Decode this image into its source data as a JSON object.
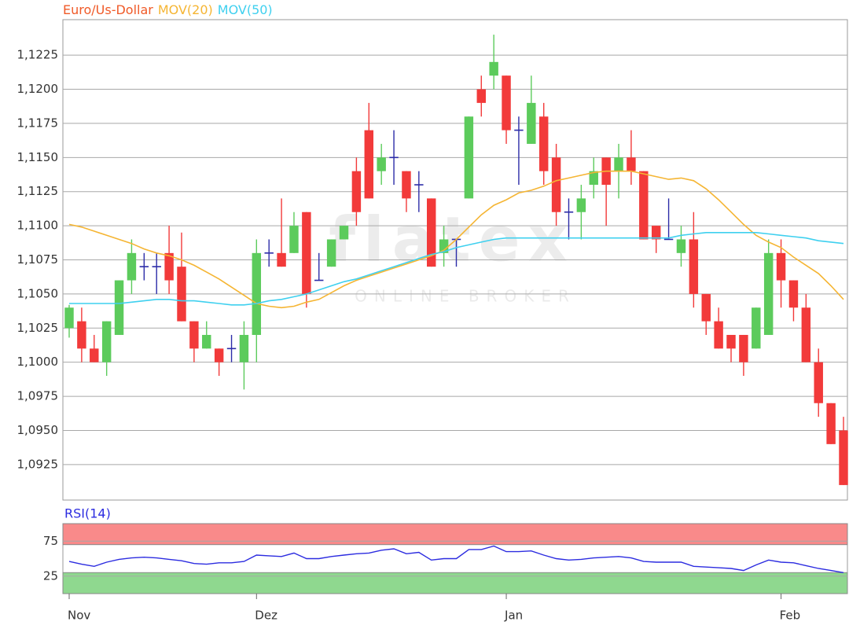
{
  "chart_data": [
    {
      "type": "candlestick",
      "categories": [
        "Nov",
        null,
        null,
        null,
        null,
        null,
        null,
        null,
        null,
        null,
        null,
        null,
        null,
        null,
        null,
        "Dez",
        null,
        null,
        null,
        null,
        null,
        null,
        null,
        null,
        null,
        null,
        null,
        null,
        null,
        null,
        null,
        null,
        null,
        null,
        null,
        "Jan",
        null,
        null,
        null,
        null,
        null,
        null,
        null,
        null,
        null,
        null,
        null,
        null,
        null,
        null,
        null,
        null,
        null,
        null,
        null,
        null,
        null,
        "Feb",
        null,
        null,
        null,
        null,
        null
      ],
      "series": [
        {
          "name": "Euro/Us-Dollar",
          "color": "#f05a28",
          "up_color": "#5ccb5c",
          "down_color": "#f23a3a",
          "doji_color": "#2c2ca8",
          "open": [
            1.1025,
            1.103,
            1.101,
            1.1,
            1.102,
            1.106,
            1.107,
            1.107,
            1.108,
            1.107,
            1.103,
            1.101,
            1.101,
            1.101,
            1.1,
            1.102,
            1.108,
            1.108,
            1.108,
            1.111,
            1.106,
            1.107,
            1.109,
            1.114,
            1.117,
            1.114,
            1.115,
            1.114,
            1.113,
            1.112,
            1.108,
            1.109,
            1.112,
            1.12,
            1.121,
            1.121,
            1.117,
            1.116,
            1.118,
            1.115,
            1.111,
            1.111,
            1.113,
            1.115,
            1.114,
            1.115,
            1.114,
            1.11,
            1.109,
            1.108,
            1.109,
            1.105,
            1.103,
            1.102,
            1.102,
            1.101,
            1.102,
            1.108,
            1.106,
            1.104,
            1.1,
            1.097,
            1.095
          ],
          "high": [
            1.1042,
            1.104,
            1.102,
            1.103,
            1.106,
            1.109,
            1.108,
            1.108,
            1.11,
            1.1095,
            1.103,
            1.103,
            1.101,
            1.102,
            1.103,
            1.109,
            1.109,
            1.112,
            1.111,
            1.111,
            1.108,
            1.109,
            1.11,
            1.115,
            1.119,
            1.116,
            1.117,
            1.114,
            1.114,
            1.112,
            1.11,
            1.109,
            1.118,
            1.121,
            1.124,
            1.121,
            1.118,
            1.121,
            1.119,
            1.116,
            1.112,
            1.113,
            1.115,
            1.115,
            1.116,
            1.117,
            1.114,
            1.11,
            1.112,
            1.11,
            1.111,
            1.105,
            1.104,
            1.102,
            1.102,
            1.104,
            1.109,
            1.109,
            1.106,
            1.105,
            1.101,
            1.097,
            1.096
          ],
          "low": [
            1.1018,
            1.1,
            1.1,
            1.099,
            1.102,
            1.105,
            1.106,
            1.105,
            1.105,
            1.103,
            1.1,
            1.101,
            1.099,
            1.1,
            1.098,
            1.1,
            1.107,
            1.107,
            1.108,
            1.104,
            1.106,
            1.107,
            1.109,
            1.11,
            1.112,
            1.113,
            1.113,
            1.111,
            1.111,
            1.107,
            1.107,
            1.107,
            1.112,
            1.118,
            1.12,
            1.116,
            1.113,
            1.116,
            1.113,
            1.11,
            1.109,
            1.109,
            1.112,
            1.11,
            1.112,
            1.113,
            1.109,
            1.108,
            1.109,
            1.107,
            1.104,
            1.102,
            1.101,
            1.1,
            1.099,
            1.101,
            1.102,
            1.104,
            1.103,
            1.1,
            1.096,
            1.094,
            1.091
          ],
          "close": [
            1.104,
            1.101,
            1.1,
            1.103,
            1.106,
            1.108,
            1.107,
            1.107,
            1.106,
            1.103,
            1.101,
            1.102,
            1.1,
            1.101,
            1.102,
            1.108,
            1.108,
            1.107,
            1.11,
            1.105,
            1.106,
            1.109,
            1.11,
            1.111,
            1.112,
            1.115,
            1.115,
            1.112,
            1.113,
            1.107,
            1.109,
            1.109,
            1.118,
            1.119,
            1.122,
            1.117,
            1.117,
            1.119,
            1.114,
            1.111,
            1.111,
            1.112,
            1.114,
            1.113,
            1.115,
            1.114,
            1.109,
            1.109,
            1.109,
            1.109,
            1.105,
            1.103,
            1.101,
            1.101,
            1.1,
            1.104,
            1.108,
            1.106,
            1.104,
            1.1,
            1.097,
            1.094,
            1.091
          ]
        },
        {
          "name": "MOV(20)",
          "color": "#f5b533",
          "values": [
            1.1101,
            1.1099,
            1.1096,
            1.1093,
            1.109,
            1.1087,
            1.1083,
            1.108,
            1.1078,
            1.1075,
            1.1071,
            1.1066,
            1.1061,
            1.1055,
            1.1049,
            1.1043,
            1.1041,
            1.104,
            1.1041,
            1.1044,
            1.1046,
            1.1051,
            1.1056,
            1.106,
            1.1063,
            1.1066,
            1.1069,
            1.1072,
            1.1075,
            1.1078,
            1.1082,
            1.109,
            1.1099,
            1.1108,
            1.1115,
            1.1119,
            1.1124,
            1.1126,
            1.1129,
            1.1133,
            1.1135,
            1.1137,
            1.1139,
            1.114,
            1.114,
            1.114,
            1.1138,
            1.1136,
            1.1134,
            1.1135,
            1.1133,
            1.1127,
            1.1119,
            1.111,
            1.1101,
            1.1093,
            1.1088,
            1.1084,
            1.1077,
            1.1071,
            1.1065,
            1.1056,
            1.1046
          ]
        },
        {
          "name": "MOV(50)",
          "color": "#3fd0ef",
          "values": [
            1.1043,
            1.1043,
            1.1043,
            1.1043,
            1.1043,
            1.1044,
            1.1045,
            1.1046,
            1.1046,
            1.1045,
            1.1045,
            1.1044,
            1.1043,
            1.1042,
            1.1042,
            1.1043,
            1.1045,
            1.1046,
            1.1048,
            1.105,
            1.1053,
            1.1056,
            1.1059,
            1.1061,
            1.1064,
            1.1067,
            1.107,
            1.1073,
            1.1076,
            1.1079,
            1.1081,
            1.1084,
            1.1086,
            1.1088,
            1.109,
            1.1091,
            1.1091,
            1.1091,
            1.1091,
            1.1091,
            1.1091,
            1.1091,
            1.1091,
            1.1091,
            1.1091,
            1.1091,
            1.1091,
            1.1091,
            1.1091,
            1.1093,
            1.1094,
            1.1095,
            1.1095,
            1.1095,
            1.1095,
            1.1095,
            1.1094,
            1.1093,
            1.1092,
            1.1091,
            1.1089,
            1.1088,
            1.1087
          ]
        }
      ],
      "ylim": [
        1.0899,
        1.1251
      ],
      "yticks": [
        {
          "value": 1.0925,
          "label": "1,0925"
        },
        {
          "value": 1.095,
          "label": "1,0950"
        },
        {
          "value": 1.0975,
          "label": "1,0975"
        },
        {
          "value": 1.1,
          "label": "1,1000"
        },
        {
          "value": 1.1025,
          "label": "1,1025"
        },
        {
          "value": 1.105,
          "label": "1,1050"
        },
        {
          "value": 1.1075,
          "label": "1,1075"
        },
        {
          "value": 1.11,
          "label": "1,1100"
        },
        {
          "value": 1.1125,
          "label": "1,1125"
        },
        {
          "value": 1.115,
          "label": "1,1150"
        },
        {
          "value": 1.1175,
          "label": "1,1175"
        },
        {
          "value": 1.12,
          "label": "1,1200"
        },
        {
          "value": 1.1225,
          "label": "1,1225"
        }
      ],
      "grid": true,
      "watermark": {
        "logo": "flatex",
        "tagline": "ONLINE BROKER"
      }
    },
    {
      "type": "line",
      "title": "RSI(14)",
      "color": "#2c2ce0",
      "values": [
        46,
        42,
        39,
        45,
        49,
        51,
        52,
        51,
        49,
        47,
        43,
        42,
        44,
        44,
        46,
        55,
        54,
        53,
        58,
        50,
        50,
        53,
        55,
        57,
        58,
        62,
        64,
        57,
        59,
        48,
        50,
        50,
        63,
        63,
        68,
        60,
        60,
        61,
        55,
        50,
        48,
        49,
        51,
        52,
        53,
        51,
        46,
        45,
        45,
        45,
        39,
        38,
        37,
        36,
        33,
        41,
        48,
        45,
        44,
        40,
        36,
        33,
        30
      ],
      "ylim": [
        0,
        100
      ],
      "yticks": [
        25,
        75
      ],
      "grid": true,
      "bands": [
        {
          "from": 70,
          "to": 100,
          "color": "#f98a8a"
        },
        {
          "from": 0,
          "to": 30,
          "color": "#8fd88f"
        }
      ]
    }
  ]
}
